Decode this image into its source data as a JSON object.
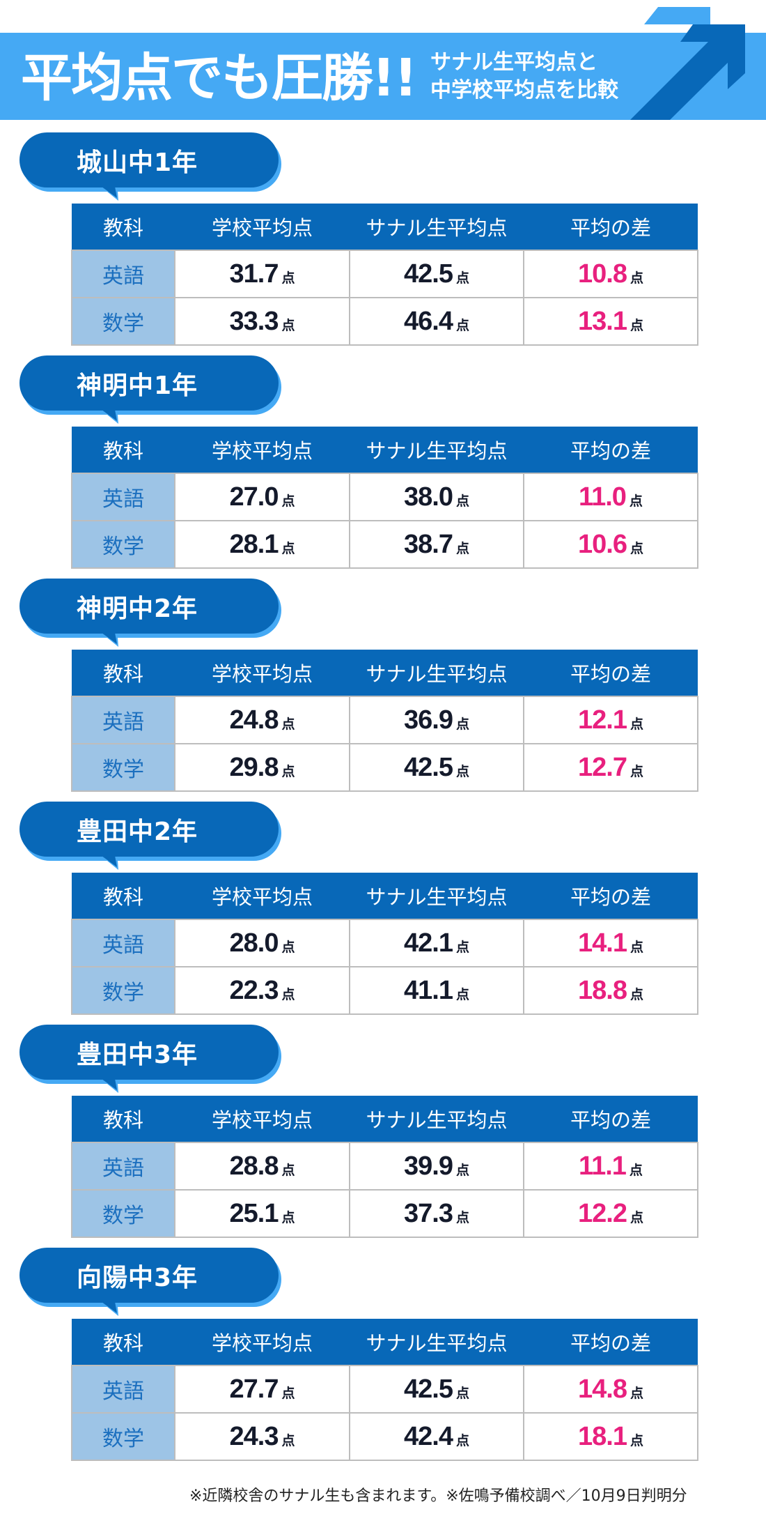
{
  "banner": {
    "title": "平均点でも圧勝!!",
    "subtitle_line1": "サナル生平均点と",
    "subtitle_line2": "中学校平均点を比較",
    "colors": {
      "banner_bg": "#45a9f4",
      "arrow_dark": "#0868b8",
      "arrow_light": "#45a9f4"
    },
    "icon": "up-right-arrow-icon"
  },
  "table_headers": [
    "教科",
    "学校平均点",
    "サナル生平均点",
    "平均の差"
  ],
  "unit": "点",
  "colors": {
    "header_bg": "#0868b8",
    "subject_bg": "#9dc4e6",
    "subject_text": "#1b6fbf",
    "diff_text": "#e8207e",
    "value_text": "#141a2b"
  },
  "sections": [
    {
      "school": "城山中1年",
      "rows": [
        {
          "subject": "英語",
          "school_avg": "31.7",
          "sanaru_avg": "42.5",
          "diff": "10.8"
        },
        {
          "subject": "数学",
          "school_avg": "33.3",
          "sanaru_avg": "46.4",
          "diff": "13.1"
        }
      ]
    },
    {
      "school": "神明中1年",
      "rows": [
        {
          "subject": "英語",
          "school_avg": "27.0",
          "sanaru_avg": "38.0",
          "diff": "11.0"
        },
        {
          "subject": "数学",
          "school_avg": "28.1",
          "sanaru_avg": "38.7",
          "diff": "10.6"
        }
      ]
    },
    {
      "school": "神明中2年",
      "rows": [
        {
          "subject": "英語",
          "school_avg": "24.8",
          "sanaru_avg": "36.9",
          "diff": "12.1"
        },
        {
          "subject": "数学",
          "school_avg": "29.8",
          "sanaru_avg": "42.5",
          "diff": "12.7"
        }
      ]
    },
    {
      "school": "豊田中2年",
      "rows": [
        {
          "subject": "英語",
          "school_avg": "28.0",
          "sanaru_avg": "42.1",
          "diff": "14.1"
        },
        {
          "subject": "数学",
          "school_avg": "22.3",
          "sanaru_avg": "41.1",
          "diff": "18.8"
        }
      ]
    },
    {
      "school": "豊田中3年",
      "rows": [
        {
          "subject": "英語",
          "school_avg": "28.8",
          "sanaru_avg": "39.9",
          "diff": "11.1"
        },
        {
          "subject": "数学",
          "school_avg": "25.1",
          "sanaru_avg": "37.3",
          "diff": "12.2"
        }
      ]
    },
    {
      "school": "向陽中3年",
      "rows": [
        {
          "subject": "英語",
          "school_avg": "27.7",
          "sanaru_avg": "42.5",
          "diff": "14.8"
        },
        {
          "subject": "数学",
          "school_avg": "24.3",
          "sanaru_avg": "42.4",
          "diff": "18.1"
        }
      ]
    }
  ],
  "footnote": "※近隣校舎のサナル生も含まれます。※佐鳴予備校調べ／10月9日判明分"
}
